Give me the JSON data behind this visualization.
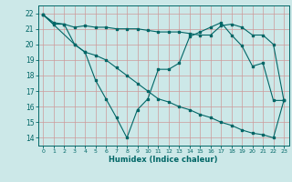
{
  "title": "",
  "xlabel": "Humidex (Indice chaleur)",
  "background_color": "#cce8e8",
  "grid_color": "#cc9999",
  "line_color": "#006666",
  "xlim": [
    -0.5,
    23.5
  ],
  "ylim": [
    13.5,
    22.5
  ],
  "xticks": [
    0,
    1,
    2,
    3,
    4,
    5,
    6,
    7,
    8,
    9,
    10,
    11,
    12,
    13,
    14,
    15,
    16,
    17,
    18,
    19,
    20,
    21,
    22,
    23
  ],
  "yticks": [
    14,
    15,
    16,
    17,
    18,
    19,
    20,
    21,
    22
  ],
  "line1_x": [
    0,
    1,
    2,
    3,
    4,
    5,
    6,
    7,
    8,
    9,
    10,
    11,
    12,
    13,
    14,
    15,
    16,
    17,
    18,
    19,
    20,
    21,
    22,
    23
  ],
  "line1_y": [
    21.9,
    21.4,
    21.3,
    21.1,
    21.2,
    21.1,
    21.1,
    21.0,
    21.0,
    21.0,
    20.9,
    20.8,
    20.8,
    20.8,
    20.7,
    20.6,
    20.6,
    21.2,
    21.3,
    21.1,
    20.6,
    20.6,
    20.0,
    16.4
  ],
  "line2_x": [
    0,
    3,
    4,
    5,
    6,
    7,
    8,
    9,
    10,
    11,
    12,
    13,
    14,
    15,
    16,
    17,
    18,
    19,
    20,
    21,
    22,
    23
  ],
  "line2_y": [
    21.9,
    20.0,
    19.5,
    17.7,
    16.5,
    15.3,
    14.0,
    15.8,
    16.5,
    18.4,
    18.4,
    18.8,
    20.5,
    20.8,
    21.1,
    21.4,
    20.6,
    19.9,
    18.6,
    18.8,
    16.4,
    16.4
  ],
  "line3_x": [
    0,
    1,
    2,
    3,
    4,
    5,
    6,
    7,
    8,
    9,
    10,
    11,
    12,
    13,
    14,
    15,
    16,
    17,
    18,
    19,
    20,
    21,
    22,
    23
  ],
  "line3_y": [
    21.9,
    21.3,
    21.3,
    20.0,
    19.5,
    19.3,
    19.0,
    18.5,
    18.0,
    17.5,
    17.0,
    16.5,
    16.3,
    16.0,
    15.8,
    15.5,
    15.3,
    15.0,
    14.8,
    14.5,
    14.3,
    14.2,
    14.0,
    16.4
  ]
}
